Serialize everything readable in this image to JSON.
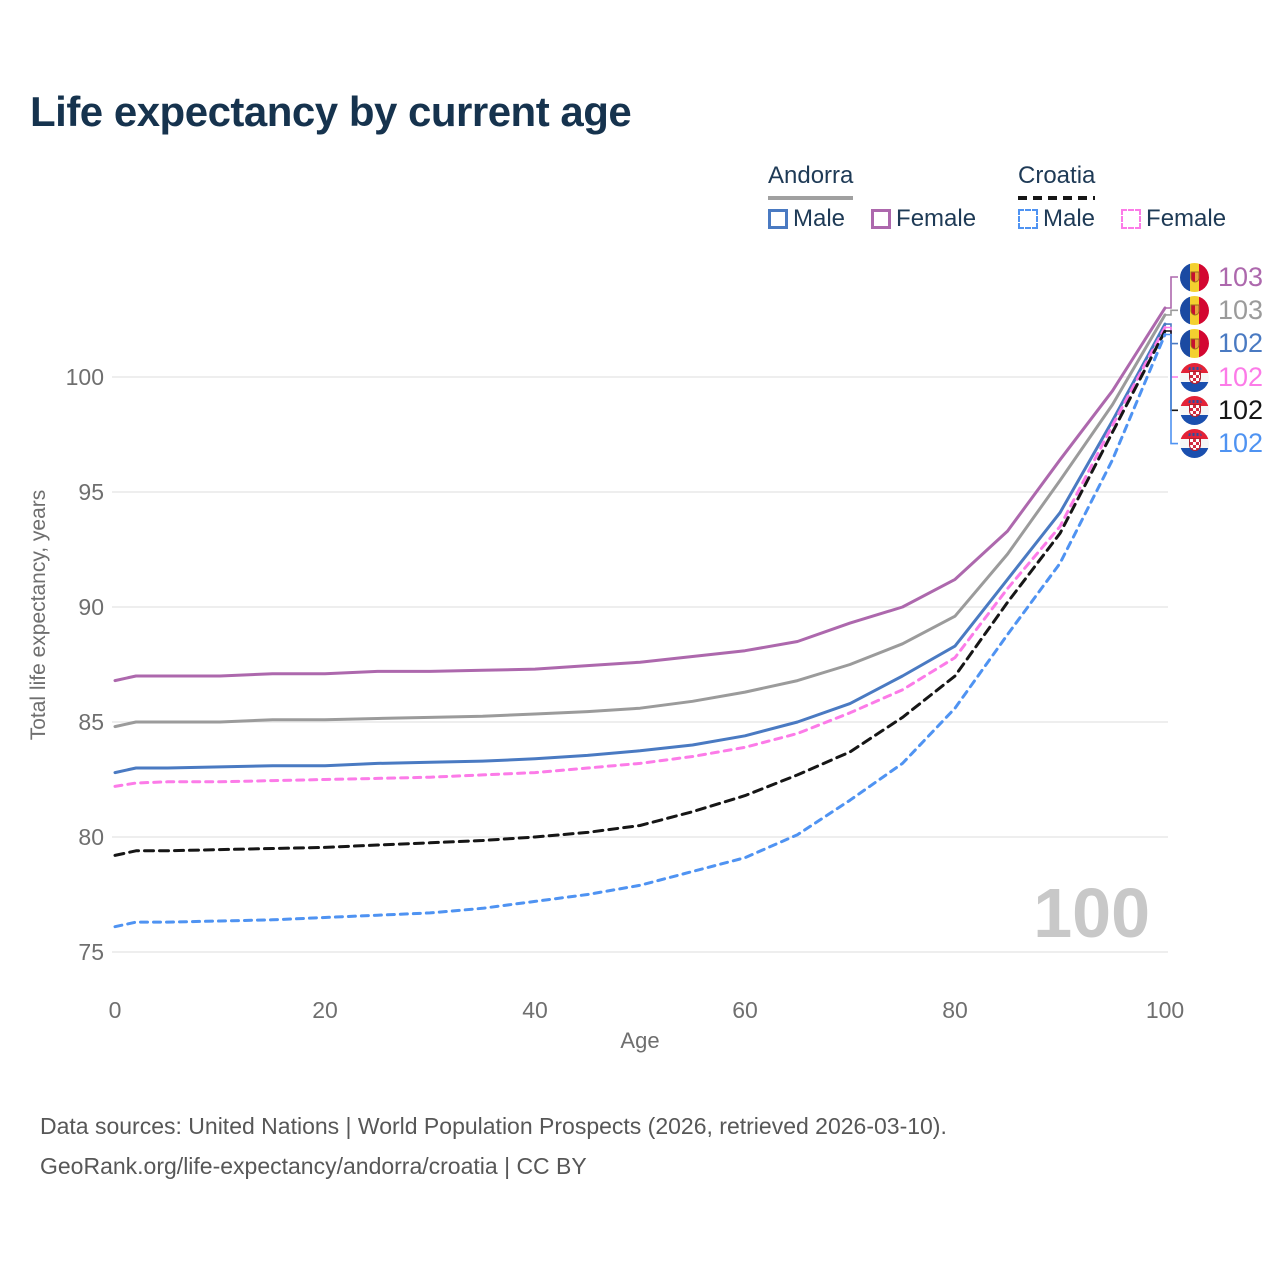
{
  "title": "Life expectancy by current age",
  "legend": {
    "groups": [
      {
        "label": "Andorra",
        "style": "solid",
        "color": "#a0a0a0"
      },
      {
        "label": "Croatia",
        "style": "dashed",
        "color": "#161616"
      }
    ],
    "items": [
      {
        "label": "Male",
        "group": "Andorra",
        "color": "#4a7ac2",
        "dashed": false
      },
      {
        "label": "Female",
        "group": "Andorra",
        "color": "#ad68ad",
        "dashed": false
      },
      {
        "label": "Male",
        "group": "Croatia",
        "color": "#4f93f2",
        "dashed": true
      },
      {
        "label": "Female",
        "group": "Croatia",
        "color": "#fc7be8",
        "dashed": true
      }
    ]
  },
  "chart_data": {
    "type": "line",
    "title": "Life expectancy by current age",
    "xlabel": "Age",
    "ylabel": "Total life expectancy, years",
    "xticks": [
      0,
      20,
      40,
      60,
      80,
      100
    ],
    "yticks": [
      75,
      80,
      85,
      90,
      95,
      100
    ],
    "xlim": [
      0,
      100
    ],
    "ylim": [
      74.5,
      104
    ],
    "grid": "horizontal",
    "x": [
      0,
      2,
      5,
      10,
      15,
      20,
      25,
      30,
      35,
      40,
      45,
      50,
      55,
      60,
      65,
      70,
      75,
      80,
      85,
      90,
      95,
      100
    ],
    "series": [
      {
        "name": "Andorra Female",
        "color": "#ad68ad",
        "dash": null,
        "end_label": "103",
        "flag": "andorra",
        "values": [
          86.8,
          87.0,
          87.0,
          87.0,
          87.1,
          87.1,
          87.2,
          87.2,
          87.25,
          87.3,
          87.45,
          87.6,
          87.85,
          88.1,
          88.5,
          89.3,
          90.0,
          91.2,
          93.3,
          96.4,
          99.4,
          103.0
        ]
      },
      {
        "name": "Andorra",
        "color": "#9b9b9b",
        "dash": null,
        "end_label": "103",
        "flag": "andorra",
        "values": [
          84.8,
          85.0,
          85.0,
          85.0,
          85.1,
          85.1,
          85.15,
          85.2,
          85.25,
          85.35,
          85.45,
          85.6,
          85.9,
          86.3,
          86.8,
          87.5,
          88.4,
          89.6,
          92.3,
          95.5,
          98.8,
          102.7
        ]
      },
      {
        "name": "Andorra Male",
        "color": "#4a7ac2",
        "dash": null,
        "end_label": "102",
        "flag": "andorra",
        "values": [
          82.8,
          83.0,
          83.0,
          83.05,
          83.1,
          83.1,
          83.2,
          83.25,
          83.3,
          83.4,
          83.55,
          83.75,
          84.0,
          84.4,
          85.0,
          85.8,
          87.0,
          88.3,
          91.2,
          94.1,
          98.1,
          102.3
        ]
      },
      {
        "name": "Croatia Female",
        "color": "#fc7be8",
        "dash": "7 6",
        "end_label": "102",
        "flag": "croatia",
        "values": [
          82.2,
          82.35,
          82.4,
          82.4,
          82.45,
          82.5,
          82.55,
          82.6,
          82.7,
          82.8,
          83.0,
          83.2,
          83.5,
          83.9,
          84.5,
          85.4,
          86.4,
          87.8,
          90.8,
          93.5,
          97.9,
          102.15
        ]
      },
      {
        "name": "Croatia",
        "color": "#161616",
        "dash": "9 6",
        "end_label": "102",
        "flag": "croatia",
        "values": [
          79.2,
          79.4,
          79.4,
          79.45,
          79.5,
          79.55,
          79.65,
          79.75,
          79.85,
          80.0,
          80.2,
          80.5,
          81.1,
          81.8,
          82.7,
          83.7,
          85.2,
          87.0,
          90.2,
          93.2,
          97.6,
          102.0
        ]
      },
      {
        "name": "Croatia Male",
        "color": "#4f93f2",
        "dash": "7 6",
        "end_label": "102",
        "flag": "croatia",
        "values": [
          76.1,
          76.3,
          76.3,
          76.35,
          76.4,
          76.5,
          76.6,
          76.7,
          76.9,
          77.2,
          77.5,
          77.9,
          78.5,
          79.1,
          80.1,
          81.6,
          83.2,
          85.6,
          88.8,
          91.9,
          96.4,
          101.85
        ]
      }
    ]
  },
  "watermark": "100",
  "footer": {
    "line1": "Data sources: United Nations | World Population Prospects (2026, retrieved 2026-03-10).",
    "line2": "GeoRank.org/life-expectancy/andorra/croatia | CC BY"
  }
}
